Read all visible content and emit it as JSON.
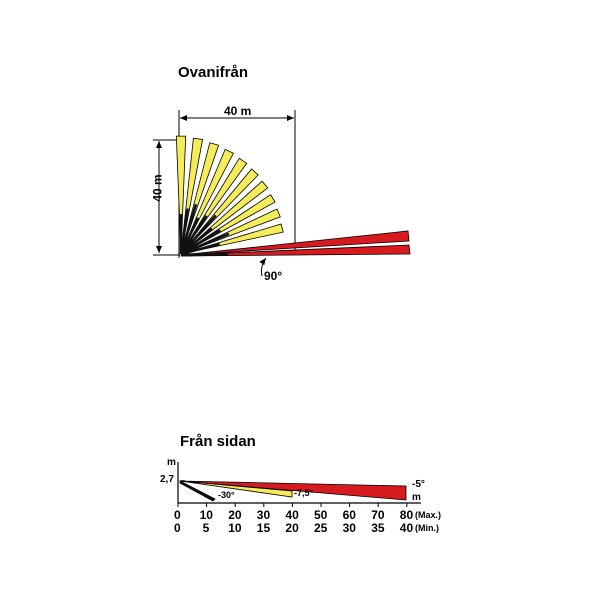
{
  "top_view": {
    "title": "Ovanifrån",
    "width_label": "40 m",
    "depth_label": "40 m",
    "angle_label": "90°",
    "yellow_color": "#f5ec5a",
    "red_color": "#d71920"
  },
  "side_view": {
    "title": "Från sidan",
    "y_unit": "m",
    "x_unit": "m",
    "height_label": "2,7",
    "angle_steep": "-30°",
    "angle_mid": "-7,5°",
    "angle_long": "-5°",
    "scale_max": [
      "0",
      "10",
      "20",
      "30",
      "40",
      "50",
      "60",
      "70",
      "80"
    ],
    "scale_min": [
      "0",
      "5",
      "10",
      "15",
      "20",
      "25",
      "30",
      "35",
      "40"
    ],
    "max_label": "(Max.)",
    "min_label": "(Min.)"
  }
}
